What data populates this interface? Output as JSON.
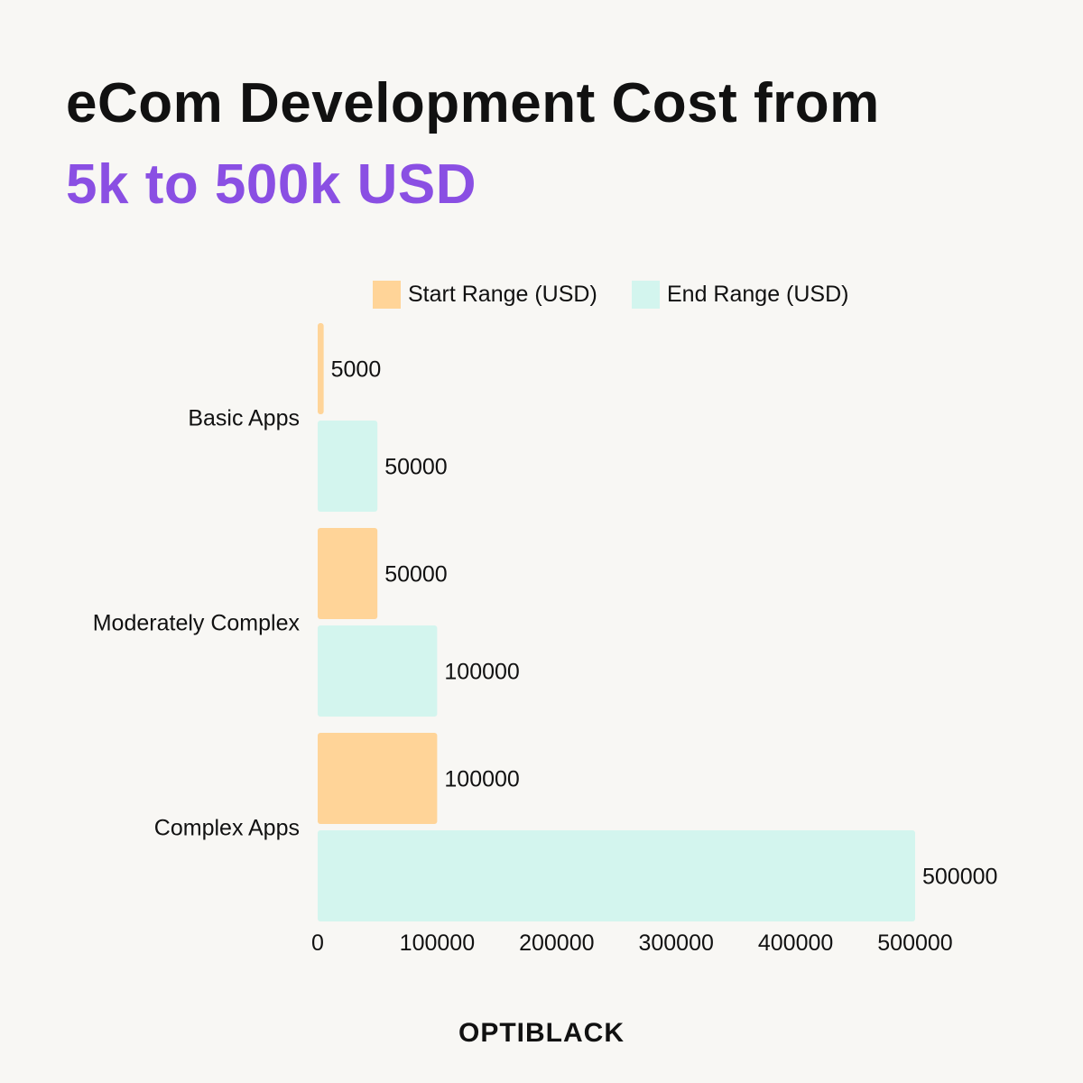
{
  "title": {
    "line1": "eCom Development Cost from",
    "line2": "5k to 500k USD"
  },
  "brand": "OPTIBLACK",
  "colors": {
    "background": "#f8f7f4",
    "title_accent": "#8a4fe3",
    "start_series": "#ffd498",
    "end_series": "#d3f5ee"
  },
  "chart_data": {
    "type": "bar",
    "orientation": "horizontal",
    "categories": [
      "Basic Apps",
      "Moderately Complex",
      "Complex Apps"
    ],
    "series": [
      {
        "name": "Start Range (USD)",
        "values": [
          5000,
          50000,
          100000
        ],
        "color": "#ffd498"
      },
      {
        "name": "End Range (USD)",
        "values": [
          50000,
          100000,
          500000
        ],
        "color": "#d3f5ee"
      }
    ],
    "xlim": [
      0,
      500000
    ],
    "xticks": [
      "0",
      "100000",
      "200000",
      "300000",
      "400000",
      "500000"
    ],
    "xlabel": "",
    "ylabel": "",
    "grid": false,
    "legend": "top",
    "data_labels": true
  }
}
